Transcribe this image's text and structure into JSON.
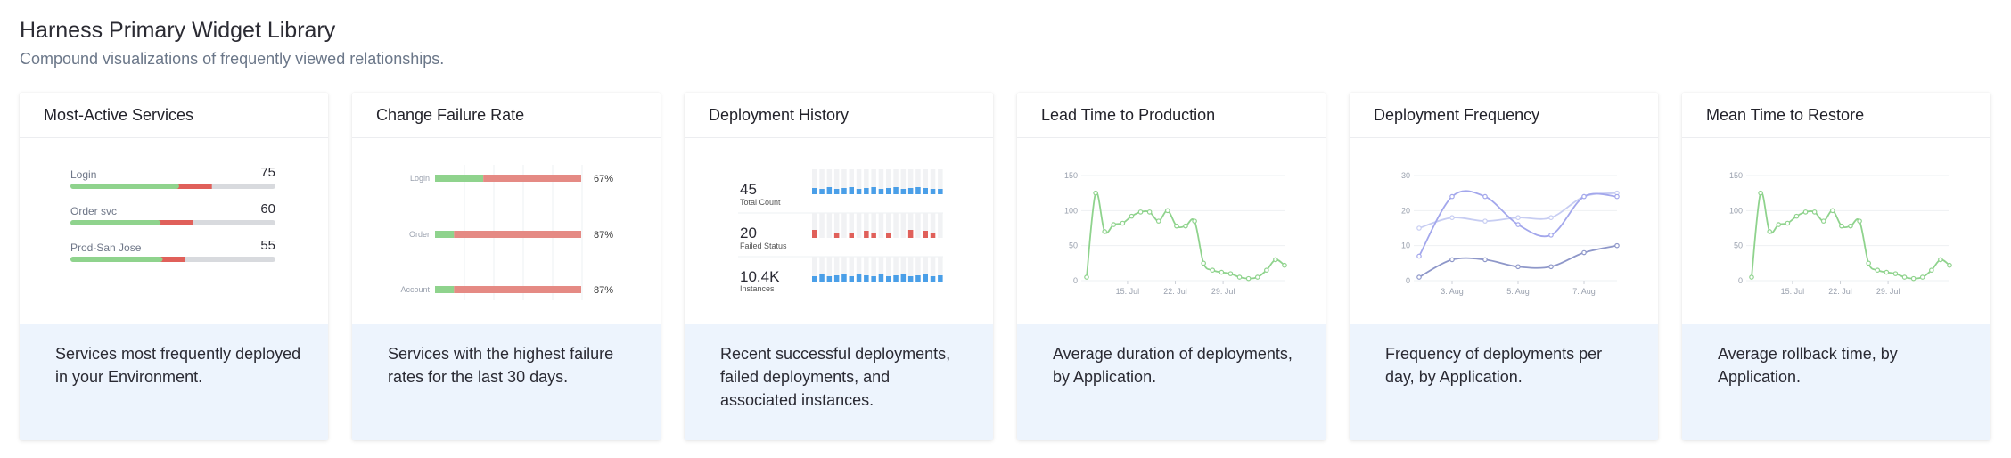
{
  "page": {
    "title": "Harness Primary Widget Library",
    "subtitle": "Compound visualizations of frequently viewed relationships."
  },
  "cards": [
    {
      "title": "Most-Active Services",
      "description": "Services most frequently deployed in your Environment.",
      "services": [
        {
          "name": "Login",
          "count": "75",
          "success": 0.53,
          "failure": 0.16
        },
        {
          "name": "Order svc",
          "count": "60",
          "success": 0.44,
          "failure": 0.16
        },
        {
          "name": "Prod-San Jose",
          "count": "55",
          "success": 0.45,
          "failure": 0.11
        }
      ],
      "colors": {
        "success": "#8fd38d",
        "failure": "#e0605a",
        "track": "#d8dade"
      }
    },
    {
      "title": "Change Failure Rate",
      "description": "Services with the highest failure rates for the last 30 days.",
      "rows": [
        {
          "name": "Login",
          "pct": "67%",
          "success": 0.33,
          "failure": 0.67
        },
        {
          "name": "Order",
          "pct": "87%",
          "success": 0.13,
          "failure": 0.87
        },
        {
          "name": "Account",
          "pct": "87%",
          "success": 0.13,
          "failure": 0.87
        }
      ],
      "colors": {
        "success": "#8fd38d",
        "failure": "#e58a84"
      }
    },
    {
      "title": "Deployment History",
      "description": "Recent successful deployments, failed deployments, and associated instances.",
      "stats": [
        {
          "value": "45",
          "label": "Total Count",
          "levels": [
            0.7,
            0.6,
            0.8,
            0.6,
            0.7,
            0.8,
            0.6,
            0.7,
            0.8,
            0.6,
            0.7,
            0.8,
            0.6,
            0.7,
            0.8,
            0.7,
            0.6,
            0.6
          ],
          "color": "#4a9fe8"
        },
        {
          "value": "20",
          "label": "Failed Status",
          "levels": [
            0.9,
            0,
            0,
            0.6,
            0,
            0.6,
            0,
            0.8,
            0.6,
            0,
            0.6,
            0,
            0,
            0.9,
            0,
            0.8,
            0.6,
            0
          ],
          "color": "#e0605a"
        },
        {
          "value": "10.4K",
          "label": "Instances",
          "levels": [
            0.6,
            0.8,
            0.6,
            0.7,
            0.8,
            0.6,
            0.8,
            0.7,
            0.6,
            0.8,
            0.6,
            0.7,
            0.8,
            0.6,
            0.7,
            0.8,
            0.6,
            0.7
          ],
          "color": "#4a9fe8"
        }
      ]
    },
    {
      "title": "Lead Time to Production",
      "description": "Average duration of deployments, by Application.",
      "chart_data": {
        "type": "line",
        "yticks": [
          "0",
          "50",
          "100",
          "150"
        ],
        "ylim": [
          0,
          150
        ],
        "xlim": [
          0,
          29
        ],
        "xticks": [
          {
            "pos": 6,
            "label": "15. Jul"
          },
          {
            "pos": 13,
            "label": "22. Jul"
          },
          {
            "pos": 20,
            "label": "29. Jul"
          }
        ],
        "series": [
          {
            "color": "#8fd38d",
            "values": [
              5,
              125,
              70,
              80,
              82,
              92,
              98,
              98,
              85,
              100,
              78,
              78,
              85,
              25,
              15,
              12,
              10,
              5,
              3,
              5,
              15,
              30,
              22
            ]
          }
        ]
      }
    },
    {
      "title": "Deployment Frequency",
      "description": "Frequency of deployments per day, by Application.",
      "chart_data": {
        "type": "line",
        "yticks": [
          "0",
          "10",
          "20",
          "30"
        ],
        "ylim": [
          0,
          30
        ],
        "xlim": [
          0,
          6
        ],
        "xticks": [
          {
            "pos": 1,
            "label": "3. Aug"
          },
          {
            "pos": 3,
            "label": "5. Aug"
          },
          {
            "pos": 5,
            "label": "7. Aug"
          }
        ],
        "series": [
          {
            "color": "#c7cdf2",
            "x": [
              0,
              1,
              2,
              3,
              4,
              5,
              6
            ],
            "values": [
              15,
              18,
              17,
              18,
              18,
              24,
              25
            ]
          },
          {
            "color": "#a3a7ec",
            "x": [
              0,
              1,
              2,
              3,
              4,
              5,
              6
            ],
            "values": [
              7,
              24,
              24,
              16,
              13,
              24,
              24
            ]
          },
          {
            "color": "#8e97c9",
            "x": [
              0,
              1,
              2,
              3,
              4,
              5,
              6
            ],
            "values": [
              1,
              6,
              6,
              4,
              4,
              8,
              10
            ]
          }
        ]
      }
    },
    {
      "title": "Mean Time to Restore",
      "description": "Average rollback time, by Application.",
      "chart_data": {
        "type": "line",
        "yticks": [
          "0",
          "50",
          "100",
          "150"
        ],
        "ylim": [
          0,
          150
        ],
        "xlim": [
          0,
          29
        ],
        "xticks": [
          {
            "pos": 6,
            "label": "15. Jul"
          },
          {
            "pos": 13,
            "label": "22. Jul"
          },
          {
            "pos": 20,
            "label": "29. Jul"
          }
        ],
        "series": [
          {
            "color": "#8fd38d",
            "values": [
              5,
              125,
              70,
              80,
              82,
              92,
              98,
              98,
              85,
              100,
              78,
              78,
              85,
              25,
              15,
              12,
              10,
              5,
              3,
              5,
              15,
              30,
              22
            ]
          }
        ]
      }
    }
  ]
}
